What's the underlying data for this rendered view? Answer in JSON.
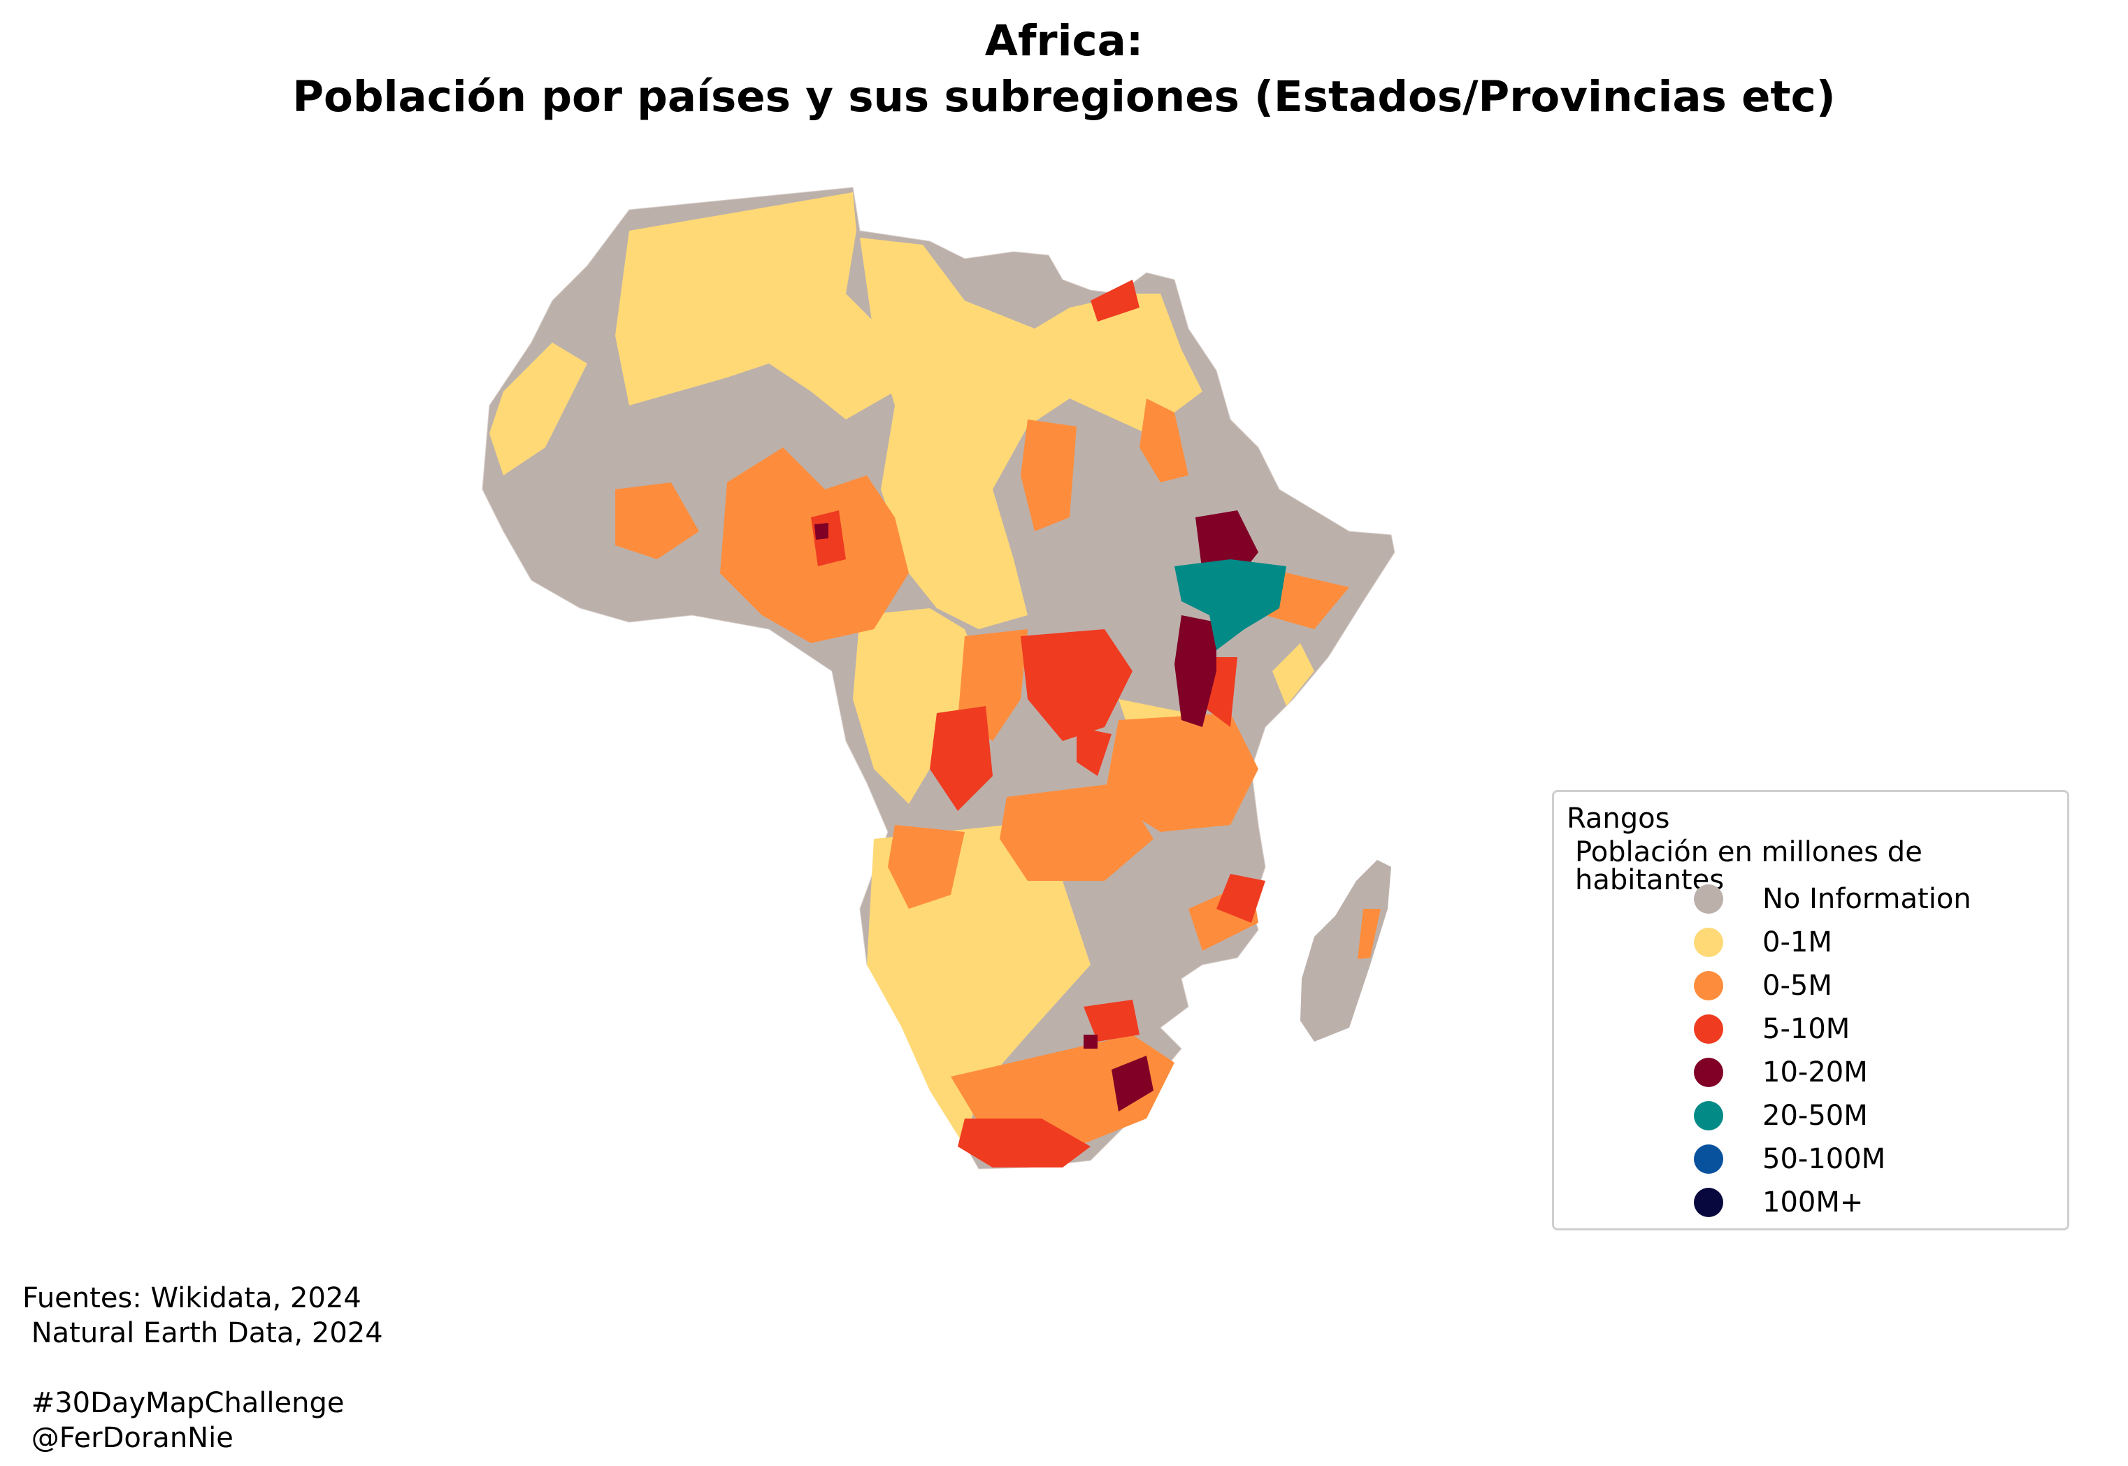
{
  "title": {
    "line1": "Africa:",
    "line2": "Población por países y sus subregiones (Estados/Provincias etc)"
  },
  "legend": {
    "title": "Rangos",
    "subtitle": "Población en millones de habitantes",
    "items": [
      {
        "label": "No Information",
        "color": "#bcb0ab"
      },
      {
        "label": "0-1M",
        "color": "#fed976"
      },
      {
        "label": "0-5M",
        "color": "#fd8d3c"
      },
      {
        "label": "5-10M",
        "color": "#ef3b20"
      },
      {
        "label": "10-20M",
        "color": "#800026"
      },
      {
        "label": "20-50M",
        "color": "#028a87"
      },
      {
        "label": "50-100M",
        "color": "#08519c"
      },
      {
        "label": "100M+",
        "color": "#08083f"
      }
    ]
  },
  "sources": {
    "line1": "Fuentes: Wikidata, 2024",
    "line2": " Natural Earth Data, 2024",
    "line3": "",
    "line4": " #30DayMapChallenge",
    "line5": " @FerDoranNie"
  }
}
